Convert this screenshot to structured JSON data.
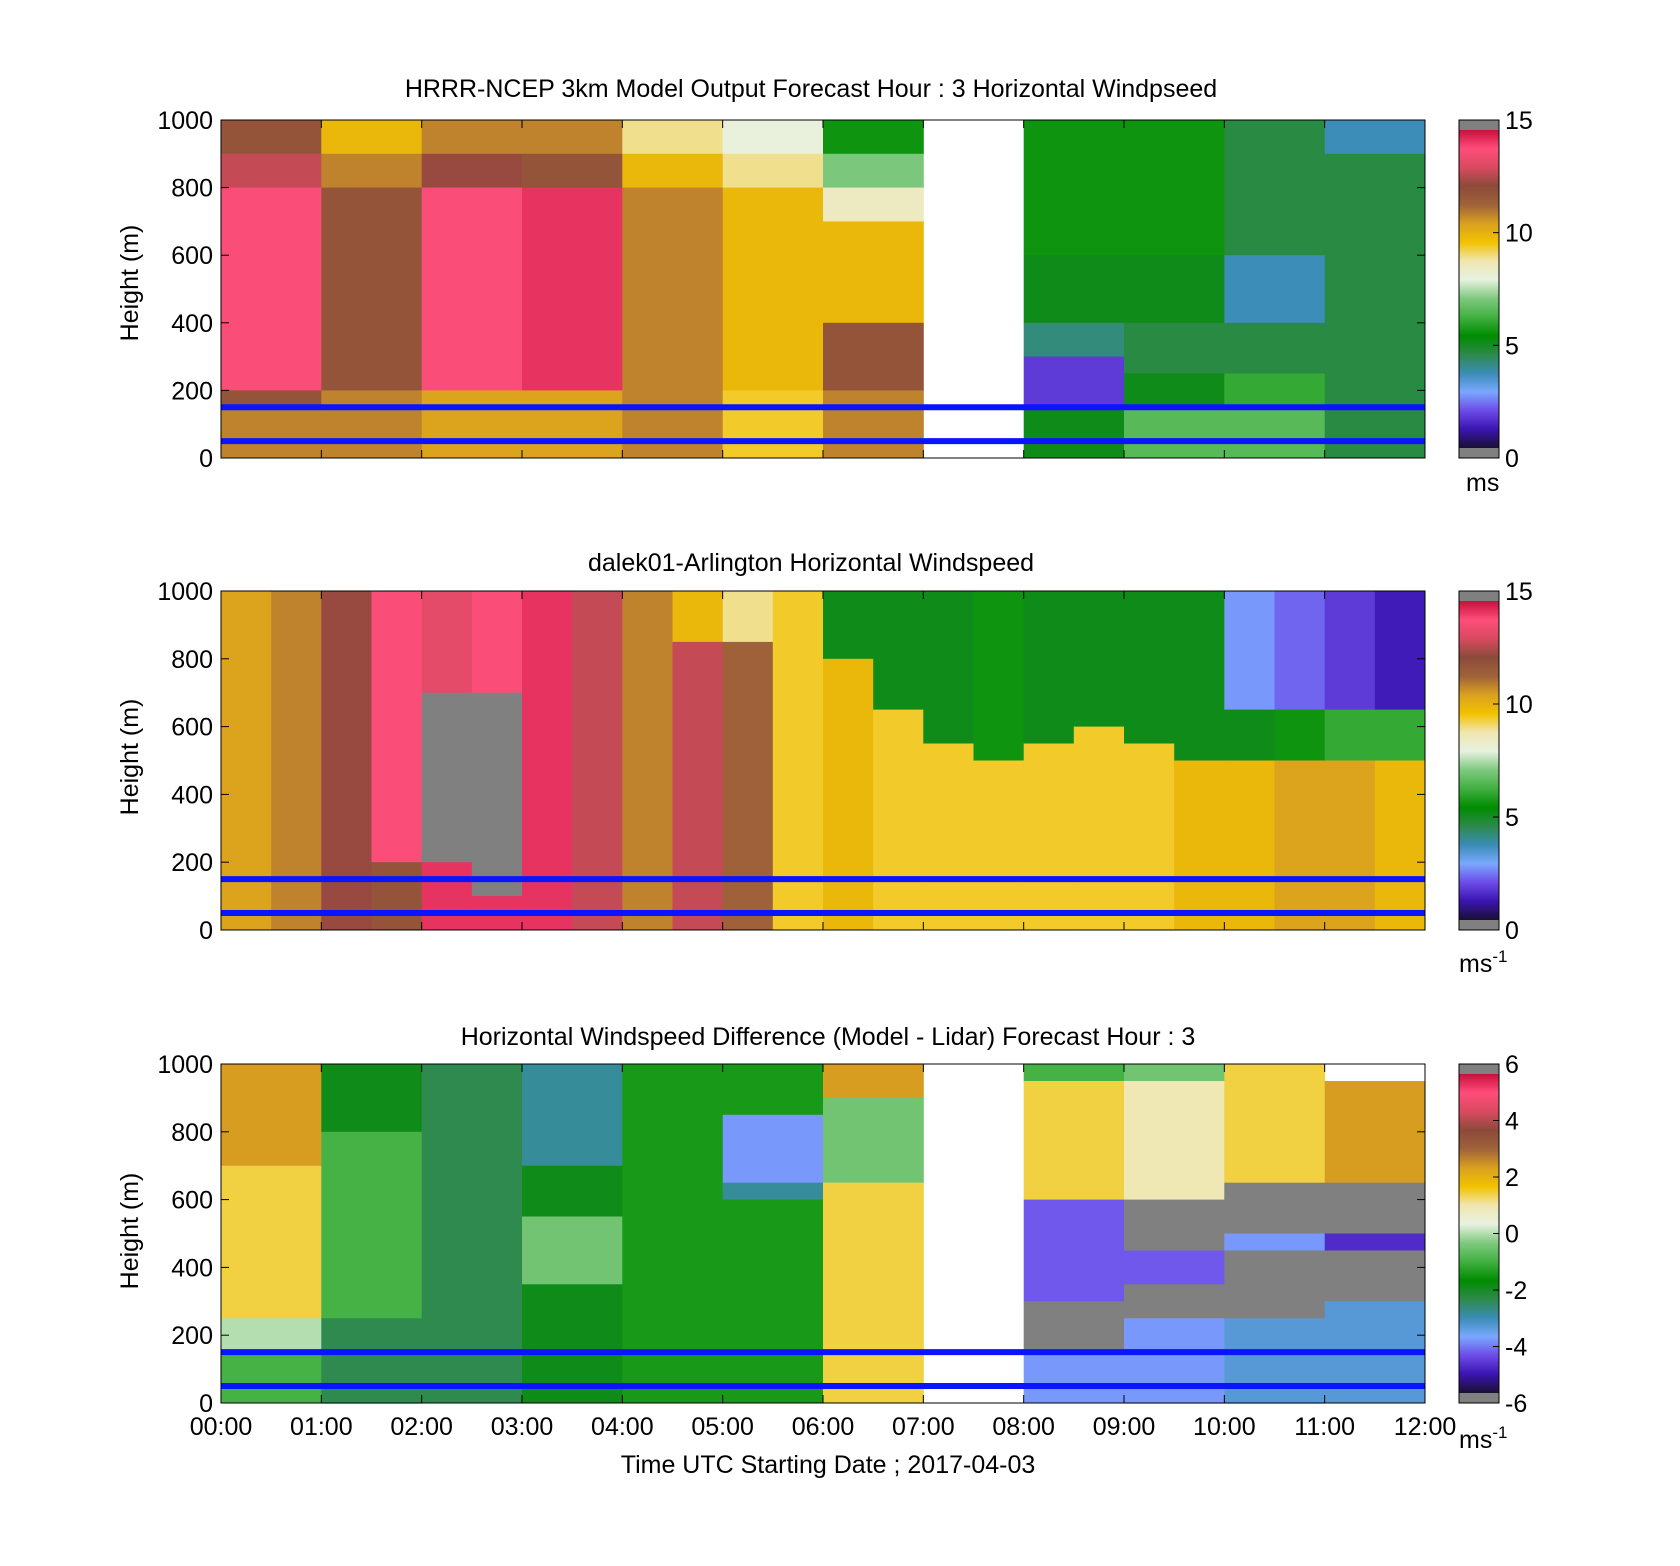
{
  "chart_data": [
    {
      "type": "heatmap",
      "title": "HRRR-NCEP 3km Model Output   Forecast Hour : 3 Horizontal Windpseed",
      "ylabel": "Height (m)",
      "ylim": [
        0,
        1000
      ],
      "yticks": [
        "0",
        "200",
        "400",
        "600",
        "800",
        "1000"
      ],
      "x": [
        "00:00",
        "01:00",
        "02:00",
        "03:00",
        "04:00",
        "05:00",
        "06:00",
        "07:00",
        "08:00",
        "09:00",
        "10:00",
        "11:00",
        "12:00"
      ],
      "colorbar": {
        "range": [
          0,
          15
        ],
        "ticks": [
          "0",
          "5",
          "10",
          "15"
        ],
        "unit": "ms",
        "unit_superscript": ""
      },
      "reference_lines_m": [
        150,
        50
      ],
      "columns": [
        {
          "x_start": 0,
          "levels": [
            [
              900,
              1000,
              12
            ],
            [
              800,
              900,
              13
            ],
            [
              200,
              800,
              14
            ],
            [
              150,
              200,
              12
            ],
            [
              0,
              150,
              11
            ]
          ]
        },
        {
          "x_start": 1,
          "levels": [
            [
              900,
              1000,
              10
            ],
            [
              800,
              900,
              11
            ],
            [
              200,
              800,
              12
            ],
            [
              0,
              200,
              11
            ]
          ]
        },
        {
          "x_start": 2,
          "levels": [
            [
              900,
              1000,
              11
            ],
            [
              800,
              900,
              12.5
            ],
            [
              200,
              800,
              14
            ],
            [
              0,
              200,
              10.5
            ]
          ]
        },
        {
          "x_start": 3,
          "levels": [
            [
              900,
              1000,
              11
            ],
            [
              800,
              900,
              12
            ],
            [
              200,
              800,
              14.5
            ],
            [
              0,
              200,
              10.5
            ]
          ]
        },
        {
          "x_start": 4,
          "levels": [
            [
              900,
              1000,
              9
            ],
            [
              800,
              900,
              10
            ],
            [
              0,
              800,
              11
            ]
          ]
        },
        {
          "x_start": 5,
          "levels": [
            [
              900,
              1000,
              8
            ],
            [
              800,
              900,
              9
            ],
            [
              200,
              800,
              10
            ],
            [
              0,
              200,
              9.5
            ]
          ]
        },
        {
          "x_start": 6,
          "levels": [
            [
              900,
              1000,
              5.5
            ],
            [
              800,
              900,
              7
            ],
            [
              700,
              800,
              8.5
            ],
            [
              400,
              700,
              10
            ],
            [
              200,
              400,
              12
            ],
            [
              0,
              200,
              11
            ]
          ]
        },
        {
          "x_start": 8,
          "levels": [
            [
              600,
              1000,
              5.5
            ],
            [
              400,
              600,
              5
            ],
            [
              300,
              400,
              4
            ],
            [
              150,
              300,
              1.5
            ],
            [
              0,
              150,
              5
            ]
          ]
        },
        {
          "x_start": 9,
          "levels": [
            [
              600,
              1000,
              5.5
            ],
            [
              400,
              600,
              5
            ],
            [
              250,
              400,
              4.5
            ],
            [
              150,
              250,
              5
            ],
            [
              0,
              150,
              6.5
            ]
          ]
        },
        {
          "x_start": 10,
          "levels": [
            [
              900,
              1000,
              4.5
            ],
            [
              600,
              900,
              4.5
            ],
            [
              400,
              600,
              3.5
            ],
            [
              250,
              400,
              4.5
            ],
            [
              150,
              250,
              6
            ],
            [
              0,
              150,
              6.5
            ]
          ]
        },
        {
          "x_start": 11,
          "levels": [
            [
              900,
              1000,
              3.5
            ],
            [
              0,
              900,
              4.5
            ]
          ]
        }
      ]
    },
    {
      "type": "heatmap",
      "title": "dalek01-Arlington  Horizontal Windspeed",
      "ylabel": "Height (m)",
      "ylim": [
        0,
        1000
      ],
      "yticks": [
        "0",
        "200",
        "400",
        "600",
        "800",
        "1000"
      ],
      "x": [
        "00:00",
        "01:00",
        "02:00",
        "03:00",
        "04:00",
        "05:00",
        "06:00",
        "07:00",
        "08:00",
        "09:00",
        "10:00",
        "11:00",
        "12:00"
      ],
      "colorbar": {
        "range": [
          0,
          15
        ],
        "ticks": [
          "0",
          "5",
          "10",
          "15"
        ],
        "unit": "ms",
        "unit_superscript": "-1"
      },
      "reference_lines_m": [
        150,
        50
      ],
      "columns": [
        {
          "x_start": 0.0,
          "levels": [
            [
              0,
              1000,
              10.5
            ]
          ]
        },
        {
          "x_start": 0.5,
          "levels": [
            [
              0,
              1000,
              11
            ]
          ]
        },
        {
          "x_start": 1.0,
          "levels": [
            [
              0,
              1000,
              12.5
            ]
          ]
        },
        {
          "x_start": 1.5,
          "levels": [
            [
              200,
              1000,
              14
            ],
            [
              0,
              200,
              12
            ]
          ]
        },
        {
          "x_start": 2.0,
          "levels": [
            [
              700,
              1000,
              13.5
            ],
            [
              200,
              700,
              null
            ],
            [
              0,
              200,
              14.5
            ]
          ]
        },
        {
          "x_start": 2.5,
          "levels": [
            [
              700,
              1000,
              14
            ],
            [
              100,
              700,
              null
            ],
            [
              0,
              100,
              14.5
            ]
          ]
        },
        {
          "x_start": 3.0,
          "levels": [
            [
              0,
              1000,
              14.5
            ]
          ]
        },
        {
          "x_start": 3.5,
          "levels": [
            [
              0,
              1000,
              13
            ]
          ]
        },
        {
          "x_start": 4.0,
          "levels": [
            [
              0,
              1000,
              11
            ]
          ]
        },
        {
          "x_start": 4.5,
          "levels": [
            [
              850,
              1000,
              10
            ],
            [
              0,
              850,
              13
            ]
          ]
        },
        {
          "x_start": 5.0,
          "levels": [
            [
              850,
              1000,
              9
            ],
            [
              0,
              850,
              11.5
            ]
          ]
        },
        {
          "x_start": 5.5,
          "levels": [
            [
              0,
              1000,
              9.5
            ]
          ]
        },
        {
          "x_start": 6.0,
          "levels": [
            [
              800,
              1000,
              5
            ],
            [
              0,
              800,
              10
            ]
          ]
        },
        {
          "x_start": 6.5,
          "levels": [
            [
              650,
              1000,
              5
            ],
            [
              0,
              650,
              9.5
            ]
          ]
        },
        {
          "x_start": 7.0,
          "levels": [
            [
              550,
              1000,
              5
            ],
            [
              0,
              550,
              9.5
            ]
          ]
        },
        {
          "x_start": 7.5,
          "levels": [
            [
              500,
              1000,
              5.5
            ],
            [
              0,
              500,
              9.5
            ]
          ]
        },
        {
          "x_start": 8.0,
          "levels": [
            [
              550,
              1000,
              5
            ],
            [
              0,
              550,
              9.5
            ]
          ]
        },
        {
          "x_start": 8.5,
          "levels": [
            [
              600,
              1000,
              5
            ],
            [
              0,
              600,
              9.5
            ]
          ]
        },
        {
          "x_start": 9.0,
          "levels": [
            [
              550,
              1000,
              5
            ],
            [
              0,
              550,
              9.5
            ]
          ]
        },
        {
          "x_start": 9.5,
          "levels": [
            [
              500,
              1000,
              5
            ],
            [
              0,
              500,
              10
            ]
          ]
        },
        {
          "x_start": 10.0,
          "levels": [
            [
              650,
              1000,
              2.5
            ],
            [
              500,
              650,
              5
            ],
            [
              0,
              500,
              10
            ]
          ]
        },
        {
          "x_start": 10.5,
          "levels": [
            [
              650,
              1000,
              2
            ],
            [
              500,
              650,
              5.5
            ],
            [
              0,
              500,
              10.5
            ]
          ]
        },
        {
          "x_start": 11.0,
          "levels": [
            [
              650,
              1000,
              1.5
            ],
            [
              500,
              650,
              6
            ],
            [
              0,
              500,
              10.5
            ]
          ]
        },
        {
          "x_start": 11.5,
          "levels": [
            [
              650,
              1000,
              1
            ],
            [
              500,
              650,
              6
            ],
            [
              0,
              500,
              10
            ]
          ]
        }
      ]
    },
    {
      "type": "heatmap",
      "title": "Horizontal Windspeed Difference (Model - Lidar) Forecast Hour : 3",
      "ylabel": "Height (m)",
      "xlabel": "Time UTC  Starting Date ; 2017-04-03",
      "ylim": [
        0,
        1000
      ],
      "yticks": [
        "0",
        "200",
        "400",
        "600",
        "800",
        "1000"
      ],
      "x": [
        "00:00",
        "01:00",
        "02:00",
        "03:00",
        "04:00",
        "05:00",
        "06:00",
        "07:00",
        "08:00",
        "09:00",
        "10:00",
        "11:00",
        "12:00"
      ],
      "colorbar": {
        "range": [
          -6,
          6
        ],
        "ticks": [
          "-6",
          "-4",
          "-2",
          "0",
          "2",
          "4",
          "6"
        ],
        "unit": "ms",
        "unit_superscript": "-1"
      },
      "reference_lines_m": [
        150,
        50
      ],
      "columns": [
        {
          "x_start": 0,
          "levels": [
            [
              700,
              1000,
              2.5
            ],
            [
              250,
              700,
              1.5
            ],
            [
              150,
              250,
              0
            ],
            [
              0,
              150,
              -1
            ]
          ]
        },
        {
          "x_start": 1,
          "levels": [
            [
              800,
              1000,
              -2
            ],
            [
              250,
              800,
              -1
            ],
            [
              0,
              250,
              -2.5
            ]
          ]
        },
        {
          "x_start": 2,
          "levels": [
            [
              0,
              1000,
              -2.5
            ]
          ]
        },
        {
          "x_start": 3,
          "levels": [
            [
              700,
              1000,
              -3
            ],
            [
              550,
              700,
              -2
            ],
            [
              350,
              550,
              -0.5
            ],
            [
              0,
              350,
              -2
            ]
          ]
        },
        {
          "x_start": 4,
          "levels": [
            [
              0,
              1000,
              -1.5
            ]
          ]
        },
        {
          "x_start": 5,
          "levels": [
            [
              850,
              1000,
              -1.5
            ],
            [
              650,
              850,
              -4
            ],
            [
              600,
              650,
              -3
            ],
            [
              0,
              600,
              -1.5
            ]
          ]
        },
        {
          "x_start": 6,
          "levels": [
            [
              900,
              1000,
              2.5
            ],
            [
              650,
              900,
              -0.5
            ],
            [
              0,
              650,
              1.5
            ]
          ]
        },
        {
          "x_start": 8,
          "levels": [
            [
              950,
              1000,
              -1
            ],
            [
              600,
              950,
              1.5
            ],
            [
              300,
              600,
              -4.5
            ],
            [
              150,
              300,
              null
            ],
            [
              0,
              150,
              -4
            ]
          ]
        },
        {
          "x_start": 9,
          "levels": [
            [
              950,
              1000,
              -0.5
            ],
            [
              600,
              950,
              1
            ],
            [
              550,
              600,
              null
            ],
            [
              450,
              550,
              null
            ],
            [
              350,
              450,
              -4.5
            ],
            [
              250,
              350,
              null
            ],
            [
              0,
              250,
              -4
            ]
          ]
        },
        {
          "x_start": 10,
          "levels": [
            [
              650,
              1000,
              1.5
            ],
            [
              500,
              650,
              null
            ],
            [
              450,
              500,
              -4
            ],
            [
              250,
              450,
              null
            ],
            [
              0,
              250,
              -3.5
            ]
          ]
        },
        {
          "x_start": 11,
          "levels": [
            [
              650,
              950,
              2.5
            ],
            [
              500,
              650,
              null
            ],
            [
              450,
              500,
              -5
            ],
            [
              300,
              450,
              null
            ],
            [
              0,
              300,
              -3.5
            ]
          ]
        }
      ]
    }
  ],
  "colors": {
    "reference_line": "#0a14ff",
    "missing": "#808080",
    "frame": "#000000",
    "colormap_stops": [
      "#808080",
      "#1a1033",
      "#3a14b0",
      "#6d4ce8",
      "#7aa8ff",
      "#3a8cb5",
      "#2d8a4a",
      "#008c00",
      "#41b041",
      "#7fc97f",
      "#e8f2e0",
      "#f0e6b0",
      "#f2c200",
      "#d9a020",
      "#a0623a",
      "#8c4a3a",
      "#d94a60",
      "#ff4d7a",
      "#c8103c",
      "#808080"
    ]
  }
}
